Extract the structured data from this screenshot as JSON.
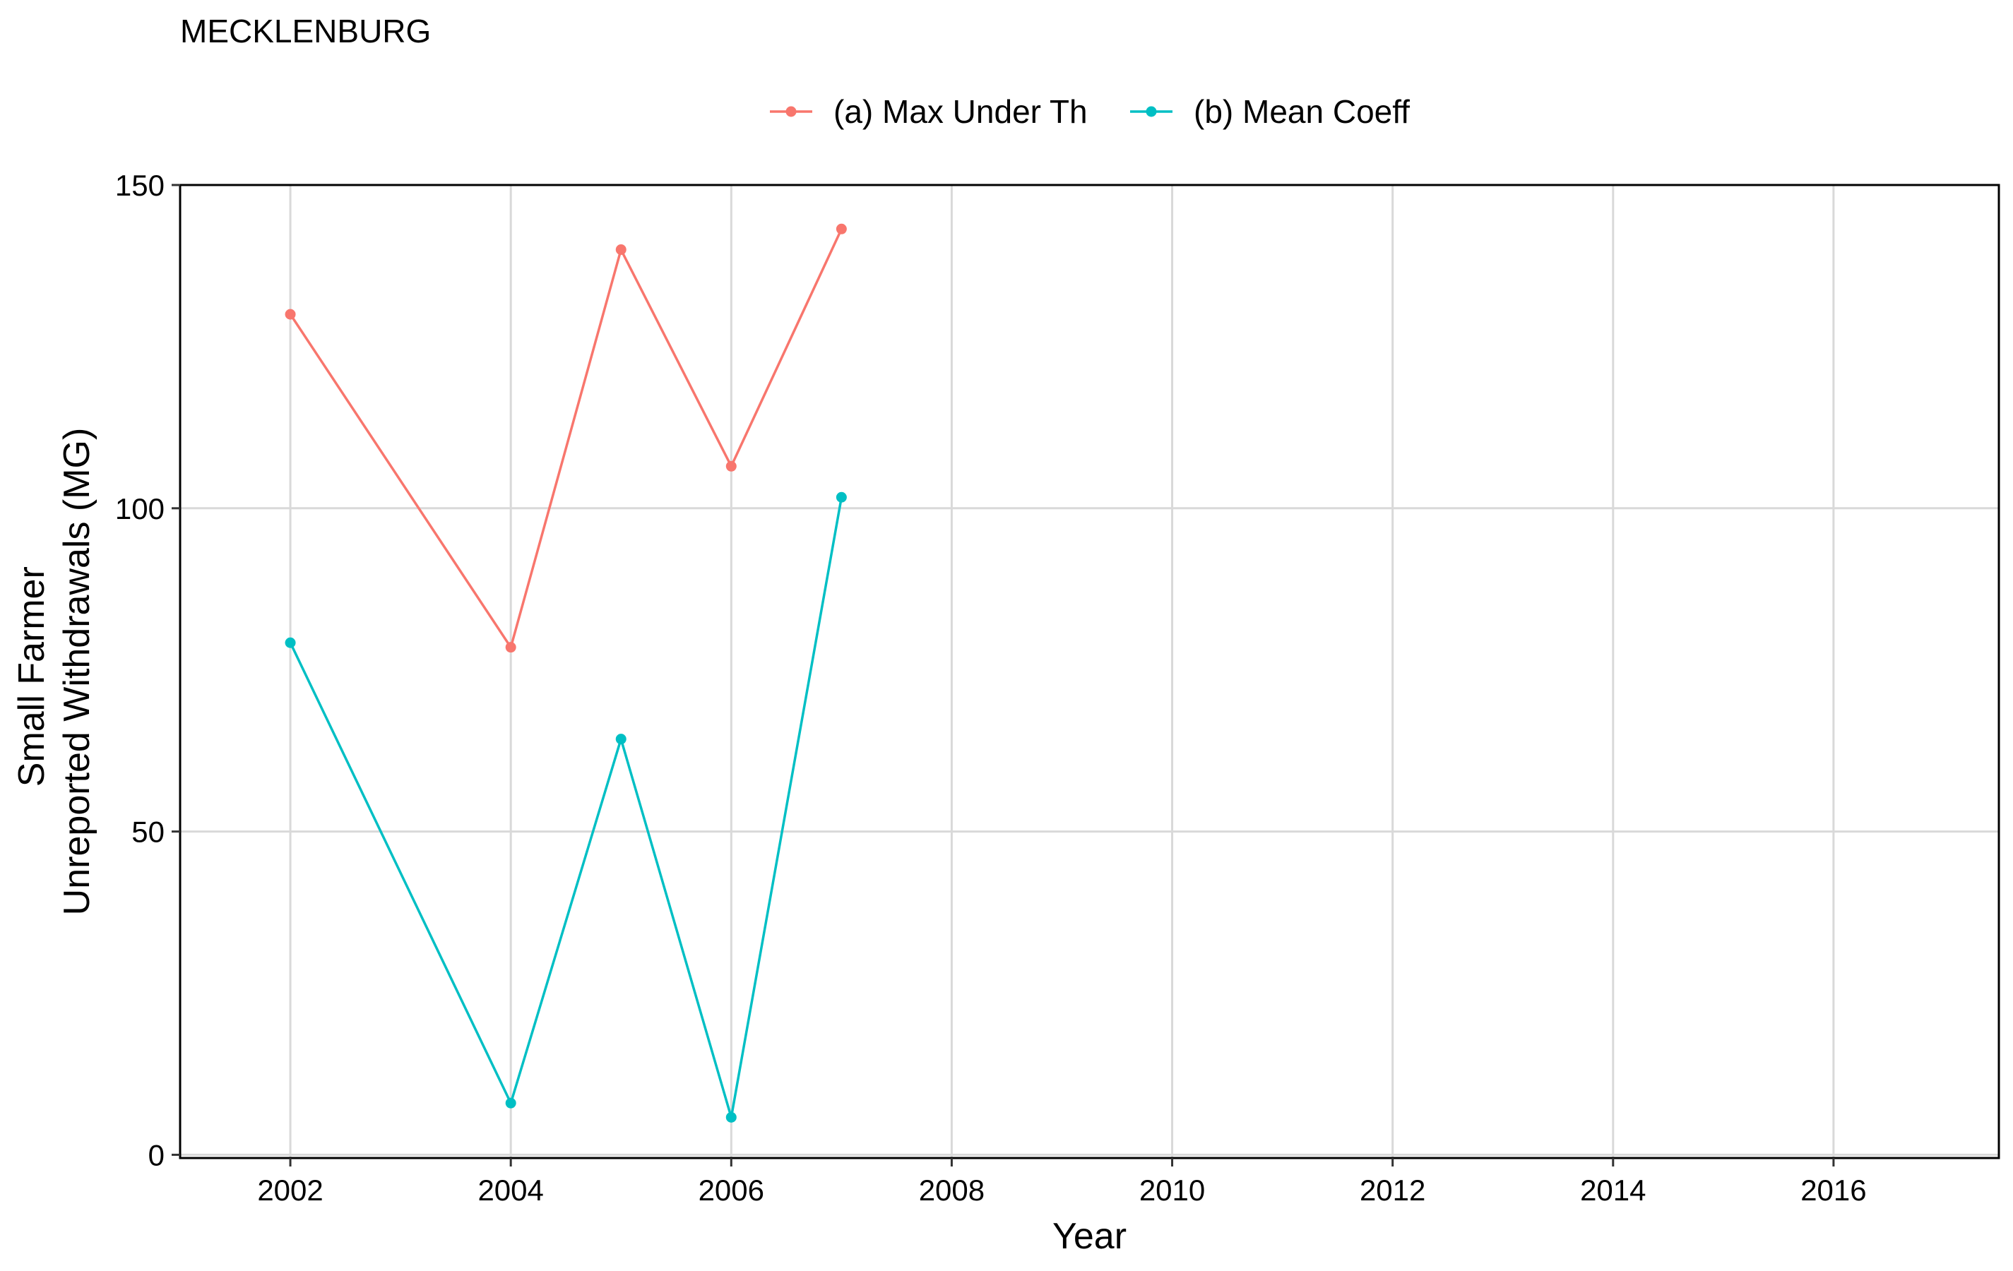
{
  "chart_data": {
    "type": "line",
    "title": "MECKLENBURG",
    "xlabel": "Year",
    "ylabel_lines": [
      "Small Farmer",
      "Unreported Withdrawals (MG)"
    ],
    "xlim": [
      2001,
      2017.5
    ],
    "ylim": [
      -0.5,
      150
    ],
    "x_ticks": [
      2002,
      2004,
      2006,
      2008,
      2010,
      2012,
      2014,
      2016
    ],
    "x_tick_labels": [
      "2002",
      "2004",
      "2006",
      "2008",
      "2010",
      "2012",
      "2014",
      "2016"
    ],
    "y_ticks": [
      0,
      50,
      100,
      150
    ],
    "y_tick_labels": [
      "0",
      "50",
      "100",
      "150"
    ],
    "grid": true,
    "legend_position": "top",
    "series": [
      {
        "name": "(a) Max Under Th",
        "color": "#F8766D",
        "x": [
          2002,
          2004,
          2005,
          2006,
          2007
        ],
        "y": [
          130,
          78.5,
          140,
          106.5,
          143.2
        ]
      },
      {
        "name": "(b) Mean Coeff",
        "color": "#00BFC4",
        "x": [
          2002,
          2004,
          2005,
          2006,
          2007
        ],
        "y": [
          79.2,
          8,
          64.3,
          5.8,
          101.7
        ]
      }
    ]
  }
}
